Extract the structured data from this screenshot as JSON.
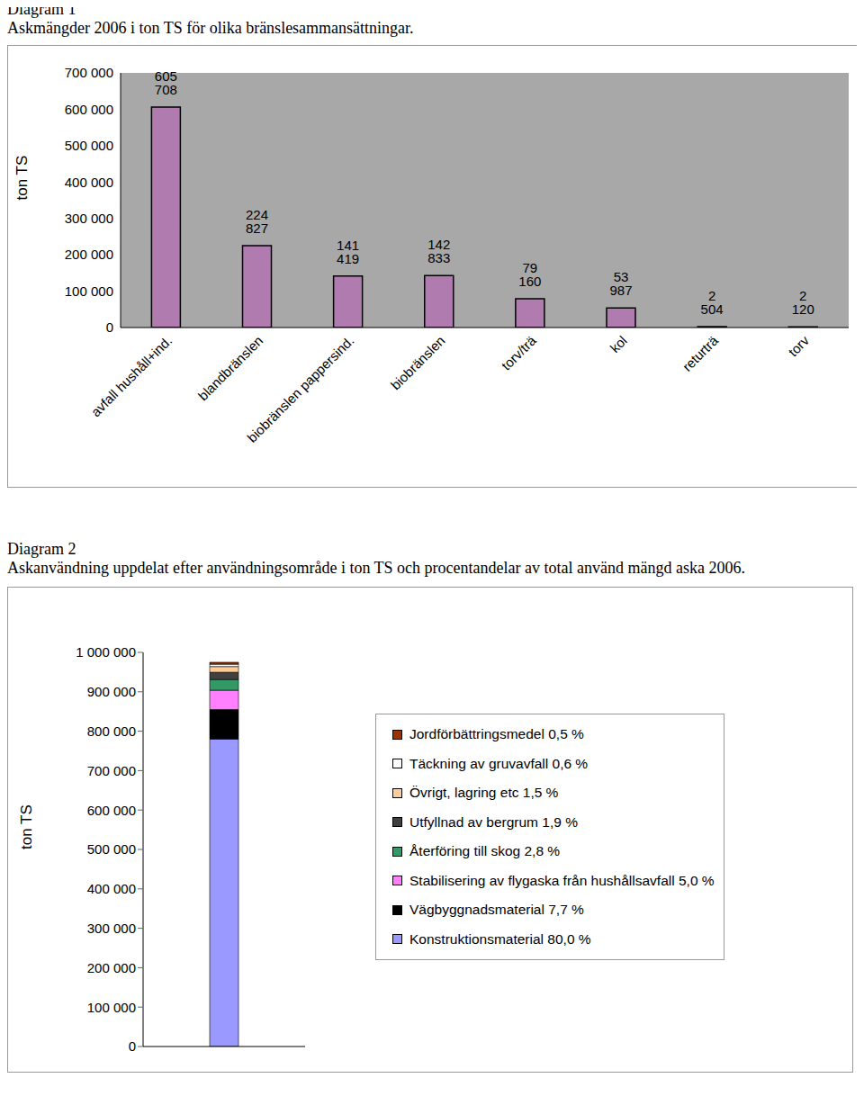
{
  "chart_data": [
    {
      "type": "bar",
      "title": "Diagram 1",
      "subtitle": "Askmängder 2006 i ton TS för olika bränslesammansättningar.",
      "ylabel": "ton TS",
      "categories": [
        "avfall hushåll+ind.",
        "blandbränslen",
        "biobränslen pappersind.",
        "biobränslen",
        "torv/trä",
        "kol",
        "returträ",
        "torv"
      ],
      "values": [
        605708,
        224827,
        141419,
        142833,
        79160,
        53987,
        2504,
        2120
      ],
      "value_labels": [
        "605 708",
        "224 827",
        "141 419",
        "142 833",
        "79 160",
        "53 987",
        "2 504",
        "2 120"
      ],
      "color": "#b07cb0",
      "ylim": [
        0,
        700000
      ],
      "yticks": [
        0,
        {
          "value": 100000,
          "label": "100 000"
        },
        {
          "value": 200000,
          "label": "200 000"
        },
        {
          "value": 300000,
          "label": "300 000"
        },
        {
          "value": 400000,
          "label": "400 000"
        },
        {
          "value": 500000,
          "label": "500 000"
        },
        {
          "value": 600000,
          "label": "600 000"
        },
        {
          "value": 700000,
          "label": "700 000"
        }
      ],
      "grid": false,
      "data_labels": true
    },
    {
      "type": "bar",
      "title": "Diagram 2",
      "subtitle": "Askanvändning uppdelat efter användningsområde i ton TS och procentandelar av total använd mängd aska 2006.",
      "ylabel": "ton TS",
      "categories": [
        null
      ],
      "series": [
        {
          "name": "Konstruktionsmaterial 80,0 %",
          "color": "#9999ff",
          "values": [
            780000
          ]
        },
        {
          "name": "Vägbyggnadsmaterial 7,7 %",
          "color": "#000000",
          "values": [
            75000
          ]
        },
        {
          "name": "Stabilisering av flygaska från hushållsavfall 5,0 %",
          "color": "#ff80ff",
          "values": [
            49000
          ]
        },
        {
          "name": "Återföring till skog 2,8 %",
          "color": "#339966",
          "values": [
            27000
          ]
        },
        {
          "name": "Utfyllnad av bergrum 1,9 %",
          "color": "#404040",
          "values": [
            18500
          ]
        },
        {
          "name": "Övrigt, lagring etc 1,5 %",
          "color": "#ffcc99",
          "values": [
            14600
          ]
        },
        {
          "name": "Täckning av gruvavfall 0,6 %",
          "color": "#ffffff",
          "values": [
            5900
          ]
        },
        {
          "name": "Jordförbättringsmedel 0,5 %",
          "color": "#993300",
          "values": [
            4900
          ]
        }
      ],
      "ylim": [
        0,
        1000000
      ],
      "yticks": [
        0,
        {
          "value": 100000,
          "label": "100 000"
        },
        {
          "value": 200000,
          "label": "200 000"
        },
        {
          "value": 300000,
          "label": "300 000"
        },
        {
          "value": 400000,
          "label": "400 000"
        },
        {
          "value": 500000,
          "label": "500 000"
        },
        {
          "value": 600000,
          "label": "600 000"
        },
        {
          "value": 700000,
          "label": "700 000"
        },
        {
          "value": 800000,
          "label": "800 000"
        },
        {
          "value": 900000,
          "label": "900 000"
        },
        {
          "value": 1000000,
          "label": "1 000 000"
        }
      ],
      "stacked": true,
      "grid": false,
      "legend": "right",
      "tick_labels": "y"
    }
  ]
}
